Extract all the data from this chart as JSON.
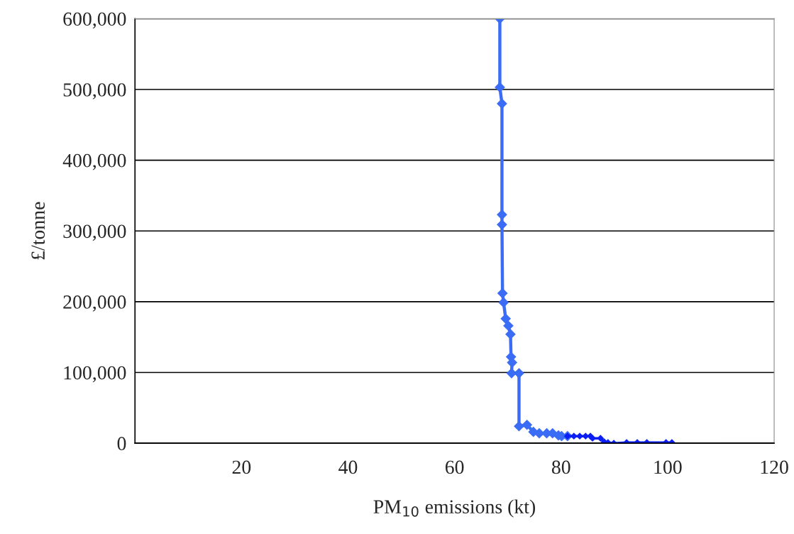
{
  "chart_data": {
    "type": "line",
    "xlabel": "PM$_{10}$ emissions (kt)",
    "ylabel": "£/tonne",
    "xlim": [
      0,
      120
    ],
    "xticks": [
      {
        "value": 0,
        "label": null
      },
      20,
      40,
      60,
      80,
      100,
      120
    ],
    "ylim": [
      0,
      600000
    ],
    "yticks": [
      0,
      {
        "value": 100000,
        "label": "100,000"
      },
      {
        "value": 200000,
        "label": "200,000"
      },
      {
        "value": 300000,
        "label": "300,000"
      },
      {
        "value": 400000,
        "label": "400,000"
      },
      {
        "value": 500000,
        "label": "500,000"
      },
      {
        "value": 600000,
        "label": "600,000"
      }
    ],
    "grid": "y",
    "marker": "diamond",
    "line_style": "solid",
    "series": [
      {
        "color": "#3a6cf5",
        "x": [
          68.5,
          68.5,
          68.9,
          68.9,
          68.9,
          69.0,
          69.2,
          69.6,
          70.1,
          70.5,
          70.6,
          70.8,
          70.7,
          72.1,
          72.1,
          73.6,
          74.8,
          75.9,
          77.3,
          78.4,
          79.5,
          80.1,
          81.2
        ],
        "values": [
          600000,
          503000,
          480000,
          323000,
          309000,
          212000,
          199000,
          176000,
          166000,
          154000,
          122000,
          114000,
          99000,
          99000,
          24000,
          26000,
          16000,
          14000,
          14000,
          14000,
          11000,
          10000,
          10000
        ]
      },
      {
        "color": "#0a1ef5",
        "x": [
          81.2,
          82.4,
          83.5,
          84.6,
          85.5,
          85.9,
          87.4,
          88.1,
          88.8,
          89.9,
          92.3,
          94.3,
          96.1,
          99.7,
          100.8
        ],
        "values": [
          10000,
          10000,
          10000,
          10000,
          10000,
          7000,
          7000,
          2000,
          1000,
          0,
          1000,
          1000,
          1000,
          1000,
          1000
        ]
      }
    ]
  }
}
